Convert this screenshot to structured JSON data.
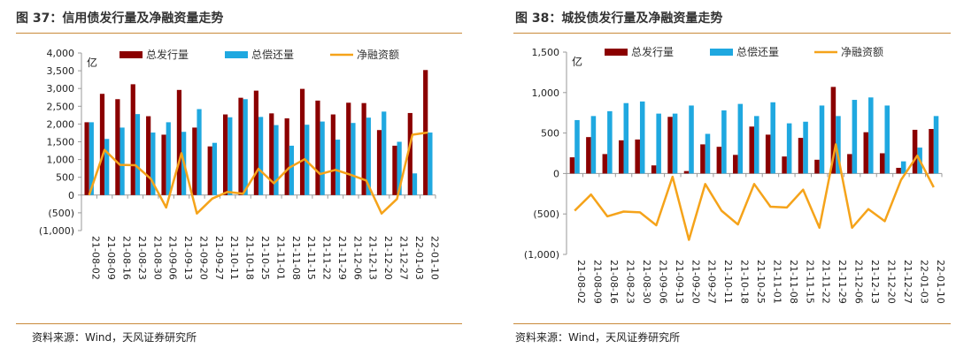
{
  "colors": {
    "issue": "#8b0000",
    "repay": "#1fa8e0",
    "net": "#f5a31a",
    "axis": "#9a9a9a",
    "rule": "#c98a3a"
  },
  "left": {
    "figure_title": "图 37：信用债发行量及净融资量走势",
    "source": "资料来源：Wind，天风证券研究所",
    "chart_data": {
      "type": "bar",
      "unit": "亿",
      "categories": [
        "21-08-02",
        "21-08-09",
        "21-08-16",
        "21-08-23",
        "21-08-30",
        "21-09-06",
        "21-09-13",
        "21-09-20",
        "21-09-27",
        "21-10-11",
        "21-10-18",
        "21-10-25",
        "21-11-01",
        "21-11-08",
        "21-11-15",
        "21-11-22",
        "21-11-29",
        "21-12-06",
        "21-12-13",
        "21-12-20",
        "21-12-27",
        "22-01-03",
        "22-01-10"
      ],
      "yticks": [
        "4,000",
        "3,500",
        "3,000",
        "2,500",
        "2,000",
        "1,500",
        "1,000",
        "500",
        "0",
        "(500)",
        "(1,000)"
      ],
      "ylim": [
        -1000,
        4000
      ],
      "series": [
        {
          "name": "总发行量",
          "kind": "bar",
          "values": [
            2050,
            2850,
            2700,
            3120,
            2220,
            1700,
            2960,
            1900,
            1370,
            2270,
            2740,
            2940,
            2300,
            2160,
            2990,
            2660,
            2270,
            2600,
            2590,
            1830,
            1390,
            2310,
            3520
          ]
        },
        {
          "name": "总偿还量",
          "kind": "bar",
          "values": [
            2050,
            1580,
            1900,
            2280,
            1760,
            2050,
            1780,
            2420,
            1470,
            2190,
            2700,
            2200,
            1970,
            1390,
            1980,
            2070,
            1560,
            2030,
            2180,
            2350,
            1500,
            610,
            1760
          ]
        },
        {
          "name": "净融资额",
          "kind": "line",
          "values": [
            0,
            1270,
            850,
            840,
            460,
            -350,
            1180,
            -520,
            -100,
            90,
            40,
            740,
            330,
            770,
            1010,
            590,
            710,
            570,
            410,
            -520,
            -110,
            1700,
            1760
          ]
        }
      ],
      "legend": "top"
    }
  },
  "right": {
    "figure_title": "图 38：城投债发行量及净融资量走势",
    "source": "资料来源：Wind，天风证券研究所",
    "chart_data": {
      "type": "bar",
      "unit": "亿",
      "categories": [
        "21-08-02",
        "21-08-09",
        "21-08-16",
        "21-08-23",
        "21-08-30",
        "21-09-06",
        "21-09-13",
        "21-09-20",
        "21-09-27",
        "21-10-11",
        "21-10-18",
        "21-10-25",
        "21-11-01",
        "21-11-08",
        "21-11-15",
        "21-11-22",
        "21-11-29",
        "21-12-06",
        "21-12-13",
        "21-12-20",
        "21-12-27",
        "22-01-03",
        "22-01-10"
      ],
      "yticks": [
        "1,500",
        "1,000",
        "500",
        "0",
        "(500)",
        "(1,000)"
      ],
      "ylim": [
        -1000,
        1500
      ],
      "series": [
        {
          "name": "总发行量",
          "kind": "bar",
          "values": [
            200,
            450,
            240,
            410,
            420,
            100,
            700,
            30,
            360,
            330,
            230,
            580,
            480,
            210,
            440,
            170,
            1070,
            240,
            510,
            250,
            70,
            540,
            550
          ]
        },
        {
          "name": "总偿还量",
          "kind": "bar",
          "values": [
            660,
            710,
            770,
            870,
            890,
            740,
            740,
            840,
            490,
            780,
            860,
            710,
            880,
            620,
            640,
            840,
            710,
            910,
            940,
            840,
            150,
            320,
            710
          ]
        },
        {
          "name": "净融资额",
          "kind": "line",
          "values": [
            -460,
            -260,
            -530,
            -470,
            -480,
            -640,
            -40,
            -820,
            -130,
            -460,
            -630,
            -130,
            -410,
            -420,
            -200,
            -670,
            360,
            -670,
            -440,
            -590,
            -80,
            220,
            -170
          ]
        }
      ],
      "legend": "top"
    }
  }
}
